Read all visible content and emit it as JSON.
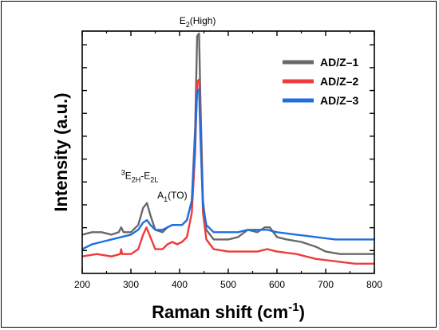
{
  "chart_data": {
    "type": "line",
    "xlabel": "Raman shift (cm",
    "xlabel_superscript": "-1",
    "xlabel_close": ")",
    "ylabel": "Intensity (a.u.)",
    "xlim": [
      200,
      800
    ],
    "ylim": [
      0,
      1
    ],
    "y_ticks_labeled": false,
    "x_ticks": [
      200,
      300,
      400,
      500,
      600,
      700,
      800
    ],
    "legend_position": "top-right",
    "grid": false,
    "series": [
      {
        "name": "AD/Z–1",
        "color": "#696969",
        "points": [
          [
            200,
            0.16
          ],
          [
            220,
            0.17
          ],
          [
            240,
            0.17
          ],
          [
            260,
            0.16
          ],
          [
            275,
            0.17
          ],
          [
            280,
            0.19
          ],
          [
            285,
            0.17
          ],
          [
            300,
            0.17
          ],
          [
            315,
            0.2
          ],
          [
            325,
            0.27
          ],
          [
            333,
            0.29
          ],
          [
            340,
            0.24
          ],
          [
            350,
            0.18
          ],
          [
            365,
            0.17
          ],
          [
            375,
            0.19
          ],
          [
            385,
            0.2
          ],
          [
            395,
            0.2
          ],
          [
            405,
            0.2
          ],
          [
            415,
            0.22
          ],
          [
            425,
            0.3
          ],
          [
            432,
            0.6
          ],
          [
            436,
            0.98
          ],
          [
            440,
            0.99
          ],
          [
            443,
            0.7
          ],
          [
            448,
            0.3
          ],
          [
            455,
            0.18
          ],
          [
            470,
            0.14
          ],
          [
            500,
            0.14
          ],
          [
            520,
            0.15
          ],
          [
            540,
            0.18
          ],
          [
            560,
            0.17
          ],
          [
            575,
            0.19
          ],
          [
            585,
            0.19
          ],
          [
            600,
            0.15
          ],
          [
            620,
            0.14
          ],
          [
            650,
            0.13
          ],
          [
            680,
            0.11
          ],
          [
            700,
            0.09
          ],
          [
            730,
            0.08
          ],
          [
            760,
            0.08
          ],
          [
            800,
            0.08
          ]
        ]
      },
      {
        "name": "AD/Z–2",
        "color": "#ef3b3b",
        "points": [
          [
            200,
            0.07
          ],
          [
            230,
            0.08
          ],
          [
            260,
            0.07
          ],
          [
            278,
            0.08
          ],
          [
            280,
            0.1
          ],
          [
            282,
            0.08
          ],
          [
            300,
            0.08
          ],
          [
            315,
            0.1
          ],
          [
            325,
            0.16
          ],
          [
            332,
            0.19
          ],
          [
            340,
            0.15
          ],
          [
            350,
            0.1
          ],
          [
            365,
            0.1
          ],
          [
            375,
            0.12
          ],
          [
            385,
            0.13
          ],
          [
            395,
            0.12
          ],
          [
            405,
            0.13
          ],
          [
            415,
            0.15
          ],
          [
            425,
            0.25
          ],
          [
            432,
            0.5
          ],
          [
            436,
            0.79
          ],
          [
            440,
            0.8
          ],
          [
            443,
            0.6
          ],
          [
            448,
            0.25
          ],
          [
            455,
            0.14
          ],
          [
            470,
            0.1
          ],
          [
            500,
            0.09
          ],
          [
            530,
            0.09
          ],
          [
            560,
            0.09
          ],
          [
            580,
            0.1
          ],
          [
            600,
            0.09
          ],
          [
            640,
            0.08
          ],
          [
            680,
            0.06
          ],
          [
            720,
            0.05
          ],
          [
            760,
            0.04
          ],
          [
            800,
            0.04
          ]
        ]
      },
      {
        "name": "AD/Z–3",
        "color": "#1f6fe0",
        "points": [
          [
            200,
            0.1
          ],
          [
            220,
            0.12
          ],
          [
            240,
            0.13
          ],
          [
            260,
            0.14
          ],
          [
            280,
            0.15
          ],
          [
            300,
            0.16
          ],
          [
            315,
            0.18
          ],
          [
            325,
            0.21
          ],
          [
            333,
            0.22
          ],
          [
            340,
            0.2
          ],
          [
            350,
            0.18
          ],
          [
            365,
            0.18
          ],
          [
            375,
            0.19
          ],
          [
            385,
            0.2
          ],
          [
            395,
            0.2
          ],
          [
            405,
            0.2
          ],
          [
            415,
            0.22
          ],
          [
            425,
            0.3
          ],
          [
            432,
            0.55
          ],
          [
            436,
            0.75
          ],
          [
            440,
            0.76
          ],
          [
            443,
            0.55
          ],
          [
            448,
            0.28
          ],
          [
            455,
            0.2
          ],
          [
            470,
            0.17
          ],
          [
            500,
            0.17
          ],
          [
            520,
            0.17
          ],
          [
            540,
            0.18
          ],
          [
            560,
            0.18
          ],
          [
            580,
            0.18
          ],
          [
            600,
            0.17
          ],
          [
            640,
            0.16
          ],
          [
            680,
            0.15
          ],
          [
            720,
            0.14
          ],
          [
            760,
            0.14
          ],
          [
            800,
            0.14
          ]
        ]
      }
    ],
    "annotations": [
      {
        "id": "e2high",
        "base": "E",
        "sub": "2",
        "suffix": "(High)",
        "x": 437,
        "y": 1.03
      },
      {
        "id": "e2h-e2l",
        "pre": "3",
        "base": "E",
        "sub": "2H",
        "mid": "-E",
        "sub2": "2L",
        "x": 318,
        "y": 0.39
      },
      {
        "id": "a1to",
        "base": "A",
        "sub": "1",
        "suffix": "(TO)",
        "x": 385,
        "y": 0.31
      }
    ]
  }
}
